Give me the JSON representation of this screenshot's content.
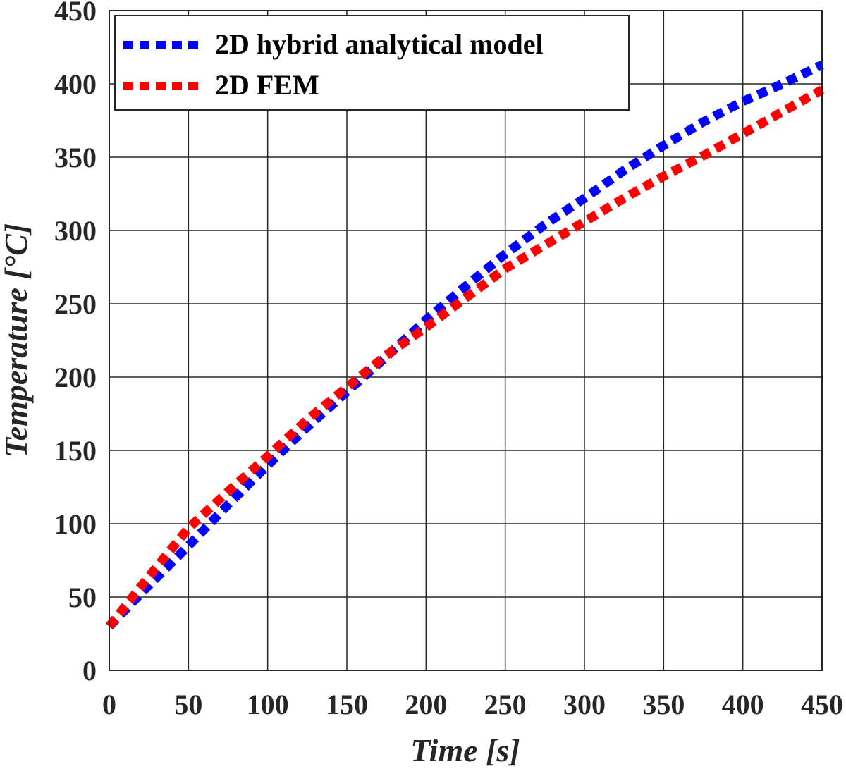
{
  "chart_data": {
    "type": "line",
    "title": "",
    "xlabel": "Time [s]",
    "ylabel": "Temperature [°C]",
    "xlim": [
      0,
      450
    ],
    "ylim": [
      0,
      450
    ],
    "xticks": [
      0,
      50,
      100,
      150,
      200,
      250,
      300,
      350,
      400,
      450
    ],
    "yticks": [
      0,
      50,
      100,
      150,
      200,
      250,
      300,
      350,
      400,
      450
    ],
    "grid": true,
    "legend_position": "top-left",
    "x": [
      0,
      25,
      50,
      75,
      100,
      125,
      150,
      175,
      200,
      225,
      250,
      275,
      300,
      325,
      350,
      375,
      400,
      425,
      450
    ],
    "series": [
      {
        "name": "2D hybrid analytical model",
        "color": "#0000ff",
        "values": [
          30,
          58,
          85,
          113,
          140,
          166,
          190,
          214,
          239,
          262,
          284,
          304,
          322,
          341,
          358,
          374,
          388,
          400,
          413
        ]
      },
      {
        "name": "2D FEM",
        "color": "#ff0000",
        "values": [
          30,
          64,
          97,
          122,
          146,
          171,
          193,
          215,
          234,
          254,
          274,
          290,
          306,
          322,
          337,
          351,
          366,
          381,
          396
        ]
      }
    ]
  }
}
